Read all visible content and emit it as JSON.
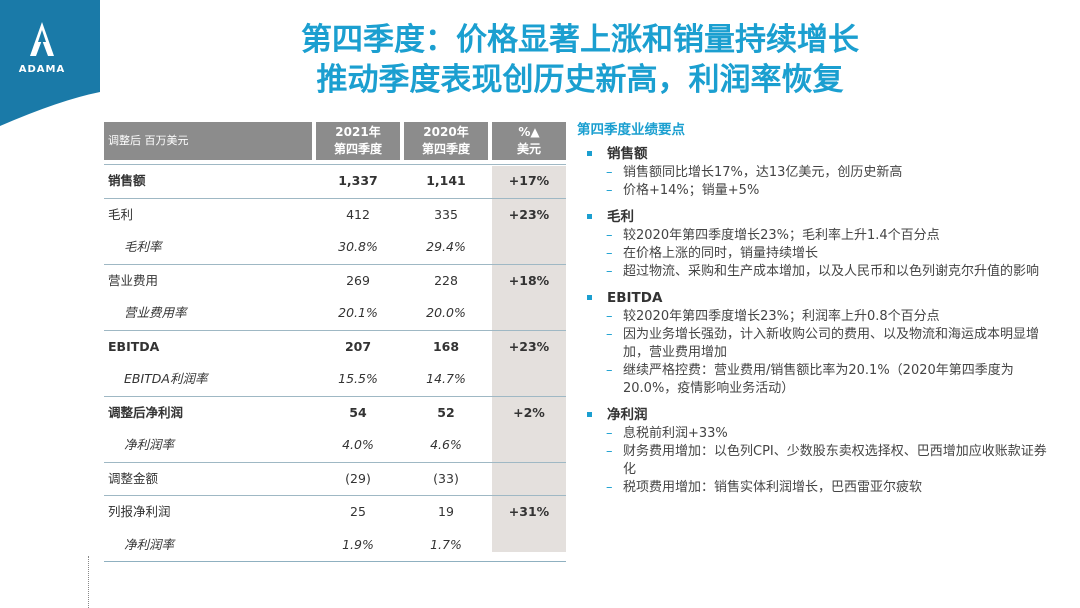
{
  "logo": {
    "text": "ADAMA",
    "color": "#1a7aa8"
  },
  "title": {
    "line1": "第四季度：价格显著上涨和销量持续增长",
    "line2": "推动季度表现创历史新高，利润率恢复"
  },
  "table": {
    "unit_label": "调整后 百万美元",
    "col1": [
      "2021年",
      "第四季度"
    ],
    "col2": [
      "2020年",
      "第四季度"
    ],
    "col3": [
      "%▲",
      "美元"
    ],
    "rows": [
      {
        "name": "销售额",
        "v1": "1,337",
        "v2": "1,141",
        "chg": "+17%"
      },
      {
        "name": "毛利",
        "v1": "412",
        "v2": "335",
        "chg": "+23%"
      },
      {
        "name": "毛利率",
        "v1": "30.8%",
        "v2": "29.4%",
        "chg": ""
      },
      {
        "name": "营业费用",
        "v1": "269",
        "v2": "228",
        "chg": "+18%"
      },
      {
        "name": "营业费用率",
        "v1": "20.1%",
        "v2": "20.0%",
        "chg": ""
      },
      {
        "name": "EBITDA",
        "v1": "207",
        "v2": "168",
        "chg": "+23%"
      },
      {
        "name": "EBITDA利润率",
        "v1": "15.5%",
        "v2": "14.7%",
        "chg": ""
      },
      {
        "name": "调整后净利润",
        "v1": "54",
        "v2": "52",
        "chg": "+2%"
      },
      {
        "name": "净利润率",
        "v1": "4.0%",
        "v2": "4.6%",
        "chg": ""
      },
      {
        "name": "调整金额",
        "v1": "(29)",
        "v2": "(33)",
        "chg": ""
      },
      {
        "name": "列报净利润",
        "v1": "25",
        "v2": "19",
        "chg": "+31%"
      },
      {
        "name": "净利润率",
        "v1": "1.9%",
        "v2": "1.7%",
        "chg": ""
      }
    ]
  },
  "highlights": {
    "title": "第四季度业绩要点",
    "sections": [
      {
        "heading": "销售额",
        "items": [
          "销售额同比增长17%，达13亿美元，创历史新高",
          "价格+14%；销量+5%"
        ]
      },
      {
        "heading": "毛利",
        "items": [
          "较2020年第四季度增长23%；毛利率上升1.4个百分点",
          "在价格上涨的同时，销量持续增长",
          "超过物流、采购和生产成本增加，以及人民币和以色列谢克尔升值的影响"
        ]
      },
      {
        "heading": "EBITDA",
        "items": [
          "较2020年第四季度增长23%；利润率上升0.8个百分点",
          "因为业务增长强劲，计入新收购公司的费用、以及物流和海运成本明显增加，营业费用增加",
          "继续严格控费：营业费用/销售额比率为20.1%（2020年第四季度为20.0%，疫情影响业务活动）"
        ]
      },
      {
        "heading": "净利润",
        "items": [
          "息税前利润+33%",
          "财务费用增加：以色列CPI、少数股东卖权选择权、巴西增加应收账款证券化",
          "税项费用增加：销售实体利润增长，巴西雷亚尔疲软"
        ]
      }
    ]
  }
}
